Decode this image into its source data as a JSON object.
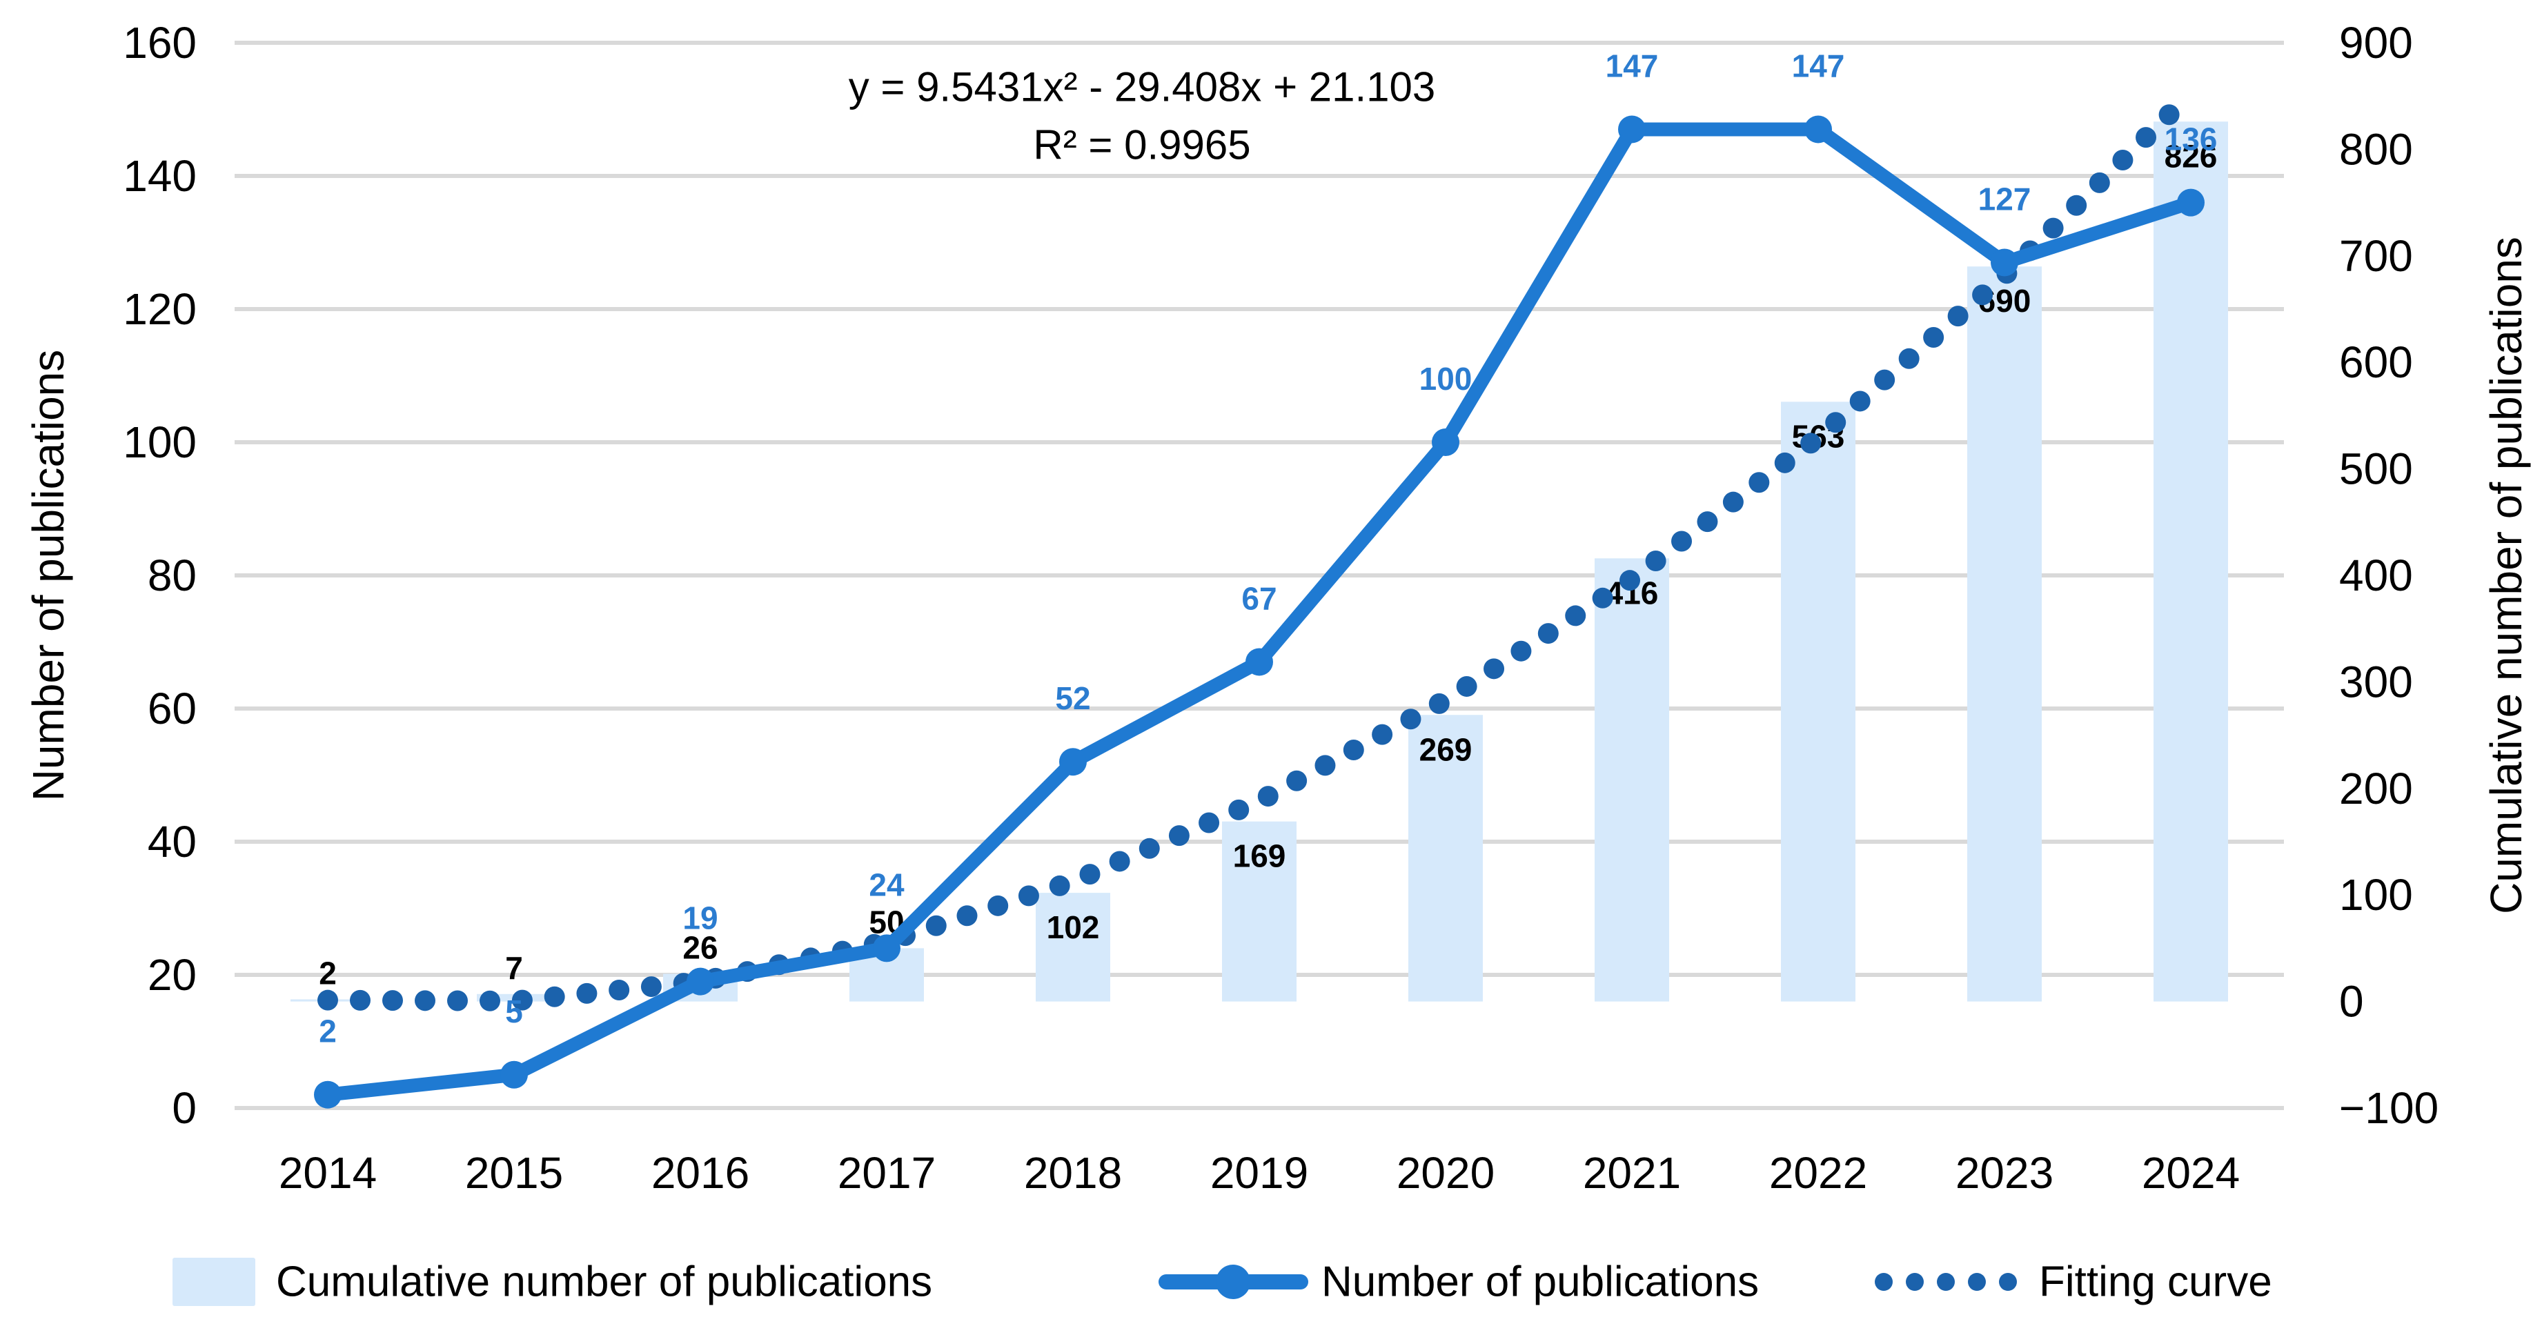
{
  "chart_data": {
    "type": "combo",
    "title": "",
    "categories": [
      "2014",
      "2015",
      "2016",
      "2017",
      "2018",
      "2019",
      "2020",
      "2021",
      "2022",
      "2023",
      "2024"
    ],
    "series": [
      {
        "name": "Cumulative number of publications",
        "type": "bar",
        "axis": "right",
        "values": [
          2,
          7,
          26,
          50,
          102,
          169,
          269,
          416,
          563,
          690,
          826
        ],
        "color": "#D6E9FB",
        "label_color": "#000000"
      },
      {
        "name": "Number of publications",
        "type": "line",
        "axis": "left",
        "values": [
          2,
          5,
          19,
          24,
          52,
          67,
          100,
          147,
          147,
          127,
          136
        ],
        "color": "#1F7AD2",
        "label_color": "#2B7CD0"
      },
      {
        "name": "Fitting curve",
        "type": "dotted-line",
        "axis": "right",
        "values": [
          1.24,
          0.46,
          18.77,
          56.16,
          112.64,
          188.21,
          282.86,
          396.6,
          529.42,
          681.33,
          852.33
        ],
        "color": "#1B62AC"
      }
    ],
    "left_axis": {
      "title": "Number of publications",
      "min": 0,
      "max": 160,
      "step": 20
    },
    "right_axis": {
      "title": "Cumulative number of publications",
      "min": -100,
      "max": 900,
      "step": 100
    },
    "annotation": {
      "equation": "y = 9.5431x² - 29.408x + 21.103",
      "r_squared": "R² = 0.9965"
    },
    "legend_position": "bottom",
    "grid": {
      "show": true,
      "color": "#D9D9D9"
    },
    "background": "#FFFFFF",
    "text_color": "#000000"
  }
}
